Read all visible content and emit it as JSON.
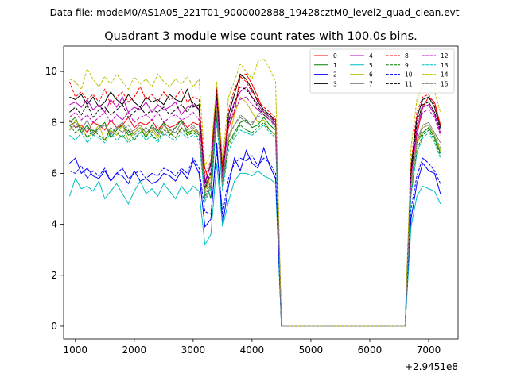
{
  "chart_data": {
    "type": "line",
    "suptitle": "Data file: modeM0/AS1A05_221T01_9000002888_19428cztM0_level2_quad_clean.evt",
    "title": "Quadrant 3 module wise count rates with 100.0s bins.",
    "xlabel": "",
    "ylabel": "",
    "offset_label": "+2.9451e8",
    "xlim": [
      800,
      7500
    ],
    "ylim": [
      -0.5,
      11
    ],
    "xticks": [
      1000,
      2000,
      3000,
      4000,
      5000,
      6000,
      7000
    ],
    "yticks": [
      0,
      2,
      4,
      6,
      8,
      10
    ],
    "x": [
      900,
      1000,
      1100,
      1200,
      1300,
      1400,
      1500,
      1600,
      1700,
      1800,
      1900,
      2000,
      2100,
      2200,
      2300,
      2400,
      2500,
      2600,
      2700,
      2800,
      2900,
      3000,
      3100,
      3200,
      3300,
      3400,
      3500,
      3600,
      3700,
      3800,
      3900,
      4000,
      4100,
      4200,
      4300,
      4400,
      4500,
      4600,
      4700,
      4800,
      4900,
      5000,
      5100,
      5200,
      5300,
      5400,
      5500,
      5600,
      5700,
      5800,
      5900,
      6000,
      6100,
      6200,
      6300,
      6400,
      6500,
      6600,
      6700,
      6800,
      6900,
      7000,
      7100,
      7200
    ],
    "gap": {
      "start_index": 36,
      "end_index": 57,
      "value": 0
    },
    "legend_position": "upper-right",
    "legend_columns": 4,
    "series": [
      {
        "name": "0",
        "color": "#ff0000",
        "dash": false,
        "pre": [
          8.1,
          7.8,
          7.9,
          7.6,
          8.0,
          7.9,
          7.7,
          8.1,
          7.8,
          7.9,
          8.2,
          7.8,
          8.0,
          7.9,
          8.1,
          7.7,
          8.0,
          7.8,
          7.9,
          8.1,
          7.8,
          8.0,
          7.9,
          6.2,
          5.4,
          9.1,
          6.3,
          7.8,
          8.4,
          9.8,
          9.9,
          9.5,
          9.0,
          8.4,
          8.3,
          8.1
        ],
        "post": [
          6.0,
          7.5,
          8.6,
          9.0,
          8.8,
          7.9
        ]
      },
      {
        "name": "1",
        "color": "#008000",
        "dash": false,
        "pre": [
          8.0,
          8.2,
          7.6,
          7.9,
          7.5,
          7.8,
          8.0,
          7.4,
          7.7,
          7.9,
          7.5,
          7.6,
          7.8,
          7.4,
          7.9,
          7.6,
          8.0,
          7.5,
          7.8,
          8.1,
          7.6,
          7.7,
          7.5,
          5.8,
          5.0,
          8.3,
          5.8,
          7.2,
          7.6,
          8.0,
          8.1,
          7.8,
          7.9,
          8.2,
          7.9,
          7.7
        ],
        "post": [
          5.6,
          7.2,
          7.6,
          7.8,
          7.4,
          6.8
        ]
      },
      {
        "name": "2",
        "color": "#0000ff",
        "dash": false,
        "pre": [
          6.4,
          6.6,
          6.0,
          6.2,
          5.9,
          5.8,
          6.1,
          5.7,
          6.0,
          5.9,
          5.6,
          6.1,
          5.7,
          5.8,
          5.6,
          5.7,
          6.0,
          5.9,
          5.7,
          6.1,
          5.8,
          6.5,
          6.0,
          3.9,
          4.2,
          7.2,
          4.0,
          5.5,
          6.6,
          6.1,
          6.9,
          6.4,
          6.2,
          7.0,
          6.3,
          5.8
        ],
        "post": [
          4.2,
          5.6,
          6.4,
          6.1,
          6.0,
          5.2
        ]
      },
      {
        "name": "3",
        "color": "#000000",
        "dash": false,
        "pre": [
          9.0,
          8.9,
          9.1,
          8.7,
          9.0,
          8.6,
          8.8,
          9.2,
          8.9,
          8.7,
          9.1,
          8.8,
          8.6,
          9.0,
          8.8,
          8.9,
          8.7,
          9.1,
          8.9,
          8.8,
          9.3,
          8.6,
          8.7,
          5.6,
          6.4,
          9.3,
          6.0,
          8.3,
          9.1,
          9.9,
          9.7,
          9.3,
          8.8,
          8.5,
          8.3,
          8.0
        ],
        "post": [
          6.2,
          8.2,
          8.9,
          9.0,
          8.6,
          7.8
        ]
      },
      {
        "name": "4",
        "color": "#c000c0",
        "dash": false,
        "pre": [
          8.7,
          8.8,
          8.6,
          8.9,
          8.5,
          8.7,
          8.4,
          8.9,
          8.6,
          9.0,
          8.4,
          8.6,
          8.5,
          8.8,
          8.4,
          8.7,
          8.5,
          8.6,
          8.8,
          8.3,
          8.6,
          8.7,
          8.5,
          5.7,
          6.3,
          8.9,
          6.0,
          8.1,
          8.8,
          9.2,
          9.4,
          9.0,
          8.7,
          8.4,
          8.2,
          8.0
        ],
        "post": [
          5.9,
          7.8,
          8.6,
          8.7,
          8.3,
          7.6
        ]
      },
      {
        "name": "5",
        "color": "#00bfbf",
        "dash": false,
        "pre": [
          5.1,
          5.8,
          5.4,
          5.5,
          5.3,
          5.7,
          5.0,
          5.3,
          5.6,
          5.2,
          4.8,
          5.3,
          5.7,
          5.2,
          5.4,
          5.1,
          5.6,
          5.3,
          5.0,
          5.5,
          5.2,
          5.5,
          5.3,
          3.2,
          3.6,
          6.4,
          3.9,
          4.9,
          5.7,
          6.0,
          6.0,
          5.9,
          6.1,
          5.9,
          5.8,
          5.6
        ],
        "post": [
          3.9,
          5.1,
          5.5,
          5.4,
          5.3,
          4.8
        ]
      },
      {
        "name": "6",
        "color": "#bfbf00",
        "dash": false,
        "pre": [
          7.7,
          8.1,
          7.8,
          7.4,
          7.6,
          7.9,
          7.3,
          7.7,
          7.5,
          7.9,
          7.3,
          7.6,
          7.8,
          7.5,
          7.7,
          7.4,
          7.9,
          7.6,
          7.4,
          7.8,
          7.5,
          7.7,
          7.6,
          5.3,
          5.9,
          8.6,
          5.6,
          7.3,
          8.3,
          9.0,
          8.8,
          8.4,
          8.0,
          8.1,
          7.7,
          7.5
        ],
        "post": [
          5.5,
          7.1,
          7.8,
          7.9,
          7.5,
          6.9
        ]
      },
      {
        "name": "7",
        "color": "#808080",
        "dash": false,
        "pre": [
          7.9,
          8.0,
          7.7,
          8.1,
          7.6,
          7.8,
          7.9,
          7.5,
          7.8,
          8.0,
          7.6,
          7.7,
          7.9,
          7.6,
          7.8,
          7.5,
          7.9,
          7.7,
          7.6,
          8.0,
          7.7,
          7.8,
          7.6,
          5.0,
          5.5,
          8.4,
          5.4,
          7.5,
          7.9,
          8.2,
          8.0,
          7.9,
          8.3,
          8.5,
          8.2,
          7.9
        ],
        "post": [
          5.6,
          7.3,
          7.9,
          8.0,
          7.6,
          7.2
        ]
      },
      {
        "name": "8",
        "color": "#ff0000",
        "dash": true,
        "pre": [
          9.6,
          9.0,
          9.2,
          8.9,
          9.1,
          8.8,
          9.3,
          8.7,
          9.0,
          9.2,
          8.8,
          9.0,
          9.4,
          8.9,
          9.1,
          8.8,
          9.2,
          8.9,
          9.0,
          9.3,
          8.8,
          9.0,
          8.9,
          5.9,
          6.5,
          9.4,
          6.1,
          8.5,
          9.3,
          9.8,
          9.6,
          9.2,
          8.9,
          8.6,
          8.4,
          8.2
        ],
        "post": [
          6.4,
          8.4,
          9.0,
          9.1,
          8.7,
          7.9
        ]
      },
      {
        "name": "9",
        "color": "#008000",
        "dash": true,
        "pre": [
          7.9,
          7.6,
          7.8,
          7.4,
          7.7,
          7.5,
          7.3,
          7.8,
          7.6,
          7.4,
          7.7,
          7.3,
          7.6,
          7.8,
          7.5,
          7.3,
          7.7,
          7.6,
          7.4,
          7.8,
          7.5,
          7.6,
          7.4,
          5.1,
          5.6,
          8.2,
          5.5,
          7.1,
          7.5,
          7.9,
          7.7,
          7.6,
          7.8,
          8.0,
          7.7,
          7.5
        ],
        "post": [
          5.2,
          6.9,
          7.5,
          7.7,
          7.3,
          6.7
        ]
      },
      {
        "name": "10",
        "color": "#0000ff",
        "dash": true,
        "pre": [
          6.1,
          6.0,
          6.3,
          5.8,
          6.1,
          5.9,
          6.2,
          5.7,
          6.0,
          6.2,
          5.8,
          6.0,
          6.1,
          5.8,
          6.0,
          5.9,
          6.2,
          6.1,
          5.9,
          6.2,
          6.0,
          6.6,
          6.2,
          4.5,
          4.4,
          6.9,
          4.4,
          5.8,
          6.4,
          6.6,
          6.5,
          6.7,
          6.3,
          6.6,
          6.4,
          6.0
        ],
        "post": [
          4.6,
          5.9,
          6.6,
          6.4,
          6.1,
          5.6
        ]
      },
      {
        "name": "11",
        "color": "#000000",
        "dash": true,
        "pre": [
          8.4,
          8.6,
          8.3,
          8.7,
          8.2,
          8.5,
          8.6,
          8.3,
          8.5,
          8.7,
          8.2,
          8.4,
          8.6,
          8.3,
          8.5,
          8.4,
          8.6,
          8.3,
          8.5,
          8.7,
          8.4,
          8.8,
          8.5,
          5.4,
          6.0,
          9.0,
          5.9,
          8.0,
          8.7,
          9.4,
          9.3,
          9.0,
          8.6,
          8.3,
          8.1,
          7.9
        ],
        "post": [
          6.0,
          8.0,
          8.7,
          8.8,
          8.4,
          7.7
        ]
      },
      {
        "name": "12",
        "color": "#c000c0",
        "dash": true,
        "pre": [
          8.2,
          8.4,
          8.1,
          8.3,
          8.0,
          8.2,
          8.4,
          8.0,
          8.3,
          8.1,
          8.4,
          8.0,
          8.2,
          8.3,
          8.1,
          8.4,
          8.0,
          8.2,
          8.3,
          8.1,
          8.2,
          8.4,
          8.1,
          5.5,
          6.1,
          8.8,
          5.8,
          7.9,
          8.5,
          8.9,
          9.0,
          8.7,
          8.5,
          8.3,
          8.1,
          7.9
        ],
        "post": [
          5.8,
          7.7,
          8.4,
          8.5,
          8.2,
          7.5
        ]
      },
      {
        "name": "13",
        "color": "#00bfbf",
        "dash": true,
        "pre": [
          7.5,
          7.3,
          7.6,
          7.2,
          7.5,
          7.4,
          7.2,
          7.6,
          7.3,
          7.5,
          7.2,
          7.4,
          7.6,
          7.3,
          7.5,
          7.2,
          7.6,
          7.4,
          7.3,
          7.6,
          7.4,
          7.5,
          7.3,
          4.9,
          5.4,
          8.0,
          5.3,
          6.9,
          7.4,
          7.7,
          7.6,
          7.5,
          7.7,
          7.9,
          7.6,
          7.4
        ],
        "post": [
          5.1,
          6.8,
          7.4,
          7.6,
          7.2,
          6.6
        ]
      },
      {
        "name": "14",
        "color": "#bfbf00",
        "dash": true,
        "pre": [
          9.7,
          9.6,
          9.3,
          10.1,
          9.7,
          9.4,
          9.8,
          9.5,
          9.9,
          9.6,
          9.3,
          9.8,
          9.5,
          9.7,
          9.4,
          9.9,
          9.6,
          9.4,
          9.7,
          9.5,
          9.8,
          9.4,
          9.7,
          6.3,
          6.8,
          9.6,
          6.5,
          9.0,
          9.6,
          10.3,
          10.0,
          9.7,
          10.4,
          10.5,
          10.1,
          9.6
        ],
        "post": [
          7.0,
          8.9,
          9.5,
          9.6,
          9.2,
          8.4
        ]
      },
      {
        "name": "15",
        "color": "#808080",
        "dash": true,
        "pre": [
          7.7,
          7.9,
          7.6,
          7.8,
          7.5,
          7.7,
          7.9,
          7.6,
          7.8,
          7.6,
          7.9,
          7.5,
          7.7,
          7.8,
          7.6,
          7.9,
          7.5,
          7.7,
          7.8,
          7.6,
          7.7,
          7.9,
          7.6,
          5.2,
          5.7,
          8.5,
          5.6,
          7.4,
          7.9,
          8.3,
          8.1,
          8.0,
          8.2,
          8.4,
          8.1,
          7.8
        ],
        "post": [
          5.5,
          7.2,
          7.8,
          7.9,
          7.5,
          7.0
        ]
      }
    ]
  }
}
